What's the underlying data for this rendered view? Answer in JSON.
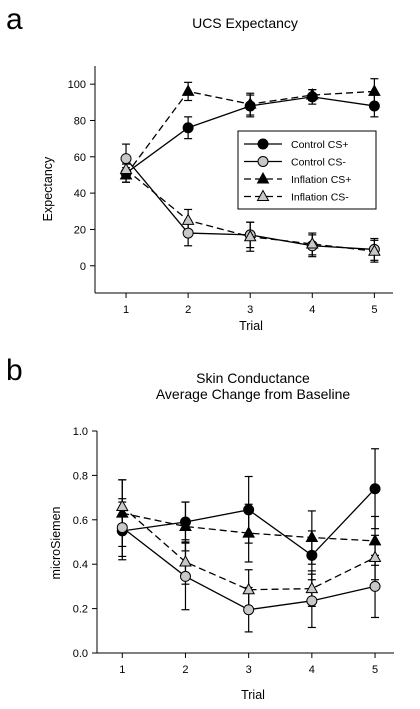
{
  "chart_data": [
    {
      "panel_label": "a",
      "type": "line",
      "title": "UCS Expectancy",
      "subtitle": "",
      "xlabel": "Trial",
      "ylabel": "Expectancy",
      "x": [
        1,
        2,
        3,
        4,
        5
      ],
      "xlim": [
        0.5,
        5.3
      ],
      "ylim": [
        -15,
        110
      ],
      "yticks": [
        0,
        20,
        40,
        60,
        80,
        100
      ],
      "ytick_labels": [
        "0",
        "20",
        "40",
        "60",
        "80",
        "100"
      ],
      "xtick_labels": [
        "1",
        "2",
        "3",
        "4",
        "5"
      ],
      "grid": false,
      "legend_position": "center-right",
      "series": [
        {
          "name": "Control CS+",
          "values": [
            51,
            76,
            88,
            93,
            88
          ],
          "errors": [
            5,
            6,
            6,
            4,
            6
          ],
          "marker": "circle",
          "fill": "#000000",
          "line": "solid",
          "color": "#000000"
        },
        {
          "name": "Control CS-",
          "values": [
            59,
            18,
            17,
            11,
            9
          ],
          "errors": [
            8,
            7,
            7,
            6,
            6
          ],
          "marker": "circle",
          "fill": "#c8c8c8",
          "line": "solid",
          "color": "#000000"
        },
        {
          "name": "Inflation CS+",
          "values": [
            50,
            96,
            89,
            94,
            96
          ],
          "errors": [
            4,
            5,
            6,
            3,
            7
          ],
          "marker": "triangle",
          "fill": "#000000",
          "line": "dashed",
          "color": "#000000"
        },
        {
          "name": "Inflation CS-",
          "values": [
            53,
            25,
            16,
            12,
            8
          ],
          "errors": [
            5,
            6,
            8,
            6,
            6
          ],
          "marker": "triangle",
          "fill": "#c8c8c8",
          "line": "dashed",
          "color": "#000000"
        }
      ]
    },
    {
      "panel_label": "b",
      "type": "line",
      "title": "Skin Conductance",
      "subtitle": "Average Change from Baseline",
      "xlabel": "Trial",
      "ylabel": "microSiemen",
      "x": [
        1,
        2,
        3,
        4,
        5
      ],
      "xlim": [
        0.6,
        5.3
      ],
      "ylim": [
        0,
        1.0
      ],
      "yticks": [
        0,
        0.2,
        0.4,
        0.6,
        0.8,
        1.0
      ],
      "ytick_labels": [
        "0.0",
        "0.2",
        "0.4",
        "0.6",
        "0.8",
        "1.0"
      ],
      "xtick_labels": [
        "1",
        "2",
        "3",
        "4",
        "5"
      ],
      "grid": false,
      "series": [
        {
          "name": "Control CS+",
          "values": [
            0.55,
            0.59,
            0.645,
            0.44,
            0.74
          ],
          "errors": [
            0.13,
            0.09,
            0.15,
            0.11,
            0.18
          ],
          "marker": "circle",
          "fill": "#000000",
          "line": "solid",
          "color": "#000000"
        },
        {
          "name": "Control CS-",
          "values": [
            0.565,
            0.345,
            0.195,
            0.235,
            0.3
          ],
          "errors": [
            0.13,
            0.15,
            0.1,
            0.12,
            0.14
          ],
          "marker": "circle",
          "fill": "#c8c8c8",
          "line": "solid",
          "color": "#000000"
        },
        {
          "name": "Inflation CS+",
          "values": [
            0.63,
            0.57,
            0.54,
            0.52,
            0.505
          ],
          "errors": [
            0.15,
            0.11,
            0.13,
            0.12,
            0.11
          ],
          "marker": "triangle",
          "fill": "#000000",
          "line": "dashed",
          "color": "#000000"
        },
        {
          "name": "Inflation CS-",
          "values": [
            0.66,
            0.41,
            0.285,
            0.29,
            0.43
          ],
          "errors": [
            0.12,
            0.1,
            0.09,
            0.08,
            0.1
          ],
          "marker": "triangle",
          "fill": "#c8c8c8",
          "line": "dashed",
          "color": "#000000"
        }
      ]
    }
  ]
}
